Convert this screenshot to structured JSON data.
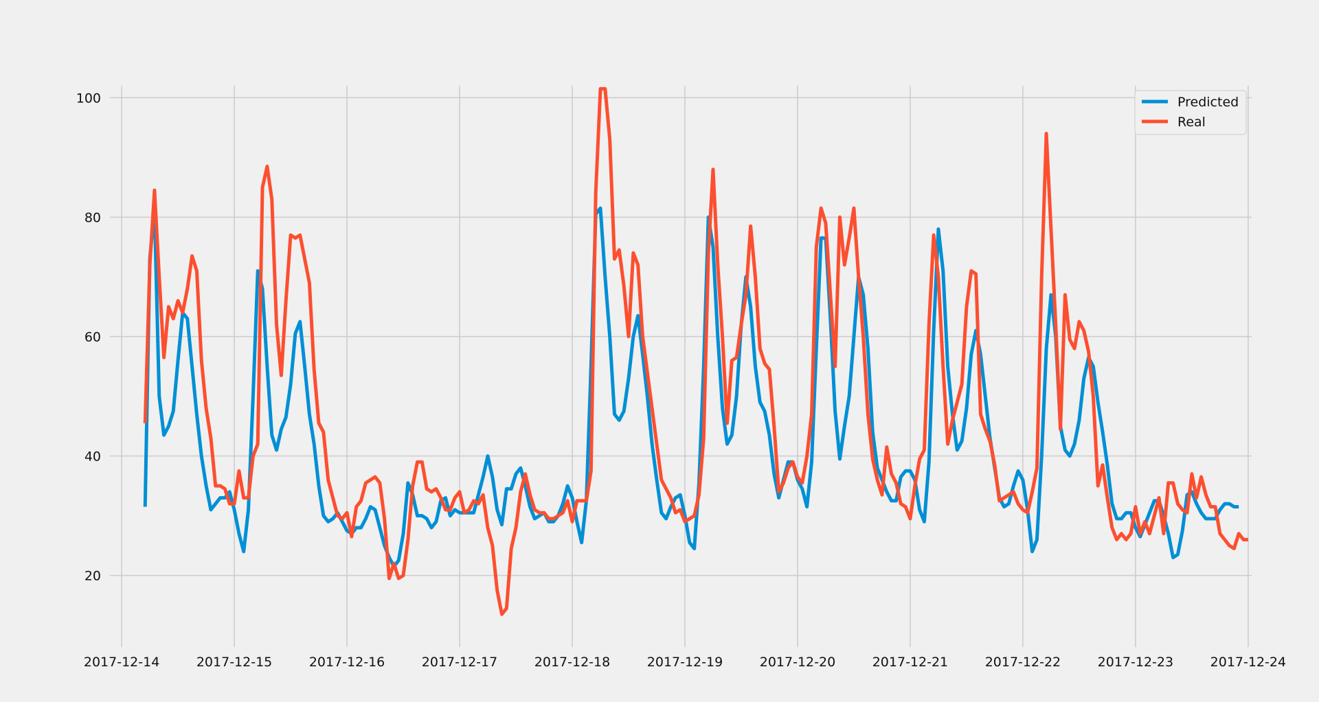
{
  "chart_data": {
    "type": "line",
    "title": "",
    "xlabel": "",
    "ylabel": "",
    "x_start": "2017-12-14 05:00",
    "x_step_hours": 1,
    "xlim": [
      "2017-12-13 21:30",
      "2017-12-24 00:45"
    ],
    "ylim": [
      8,
      102
    ],
    "xticks": [
      "2017-12-14",
      "2017-12-15",
      "2017-12-16",
      "2017-12-17",
      "2017-12-18",
      "2017-12-19",
      "2017-12-20",
      "2017-12-21",
      "2017-12-22",
      "2017-12-23",
      "2017-12-24"
    ],
    "yticks": [
      20,
      40,
      60,
      80,
      100
    ],
    "grid": true,
    "legend": "top-right",
    "series": [
      {
        "name": "Predicted",
        "color": "#008fd5",
        "values": [
          31.5,
          73.0,
          81.5,
          50.0,
          43.5,
          45.0,
          47.5,
          56.0,
          64.0,
          63.0,
          55.0,
          47.0,
          40.0,
          35.0,
          31.0,
          32.0,
          33.0,
          33.0,
          34.0,
          31.0,
          27.0,
          24.0,
          31.0,
          50.0,
          71.0,
          68.0,
          55.0,
          43.5,
          41.0,
          44.5,
          46.5,
          52.0,
          60.5,
          62.5,
          55.0,
          47.0,
          42.0,
          35.0,
          30.0,
          29.0,
          29.5,
          30.5,
          29.0,
          27.5,
          27.0,
          28.0,
          28.0,
          29.5,
          31.5,
          31.0,
          28.0,
          25.0,
          23.0,
          21.5,
          22.5,
          27.0,
          35.5,
          33.5,
          30.0,
          30.0,
          29.5,
          28.0,
          29.0,
          32.5,
          33.0,
          30.0,
          31.0,
          30.5,
          30.5,
          30.5,
          30.5,
          33.5,
          36.5,
          40.0,
          36.5,
          31.0,
          28.5,
          34.5,
          34.5,
          37.0,
          38.0,
          35.0,
          31.5,
          29.5,
          30.0,
          30.5,
          29.0,
          29.0,
          30.0,
          32.0,
          35.0,
          33.0,
          29.0,
          25.5,
          32.5,
          55.0,
          80.5,
          81.5,
          70.0,
          60.0,
          47.0,
          46.0,
          47.5,
          53.0,
          60.0,
          63.5,
          57.0,
          50.0,
          42.0,
          36.0,
          30.5,
          29.5,
          31.5,
          33.0,
          33.5,
          30.0,
          25.5,
          24.5,
          35.5,
          55.0,
          80.0,
          75.0,
          60.0,
          48.0,
          42.0,
          43.5,
          50.0,
          62.0,
          70.0,
          65.0,
          55.0,
          49.0,
          47.5,
          43.5,
          37.0,
          33.0,
          36.0,
          39.0,
          39.0,
          36.0,
          34.5,
          31.5,
          39.0,
          58.0,
          76.5,
          76.5,
          63.0,
          47.5,
          39.5,
          45.0,
          50.0,
          60.0,
          70.0,
          67.0,
          58.0,
          44.0,
          38.0,
          36.0,
          34.0,
          32.5,
          32.5,
          36.5,
          37.5,
          37.5,
          36.0,
          31.0,
          29.0,
          39.0,
          61.0,
          78.0,
          71.0,
          55.0,
          47.0,
          41.0,
          42.5,
          48.0,
          57.0,
          61.0,
          57.0,
          50.0,
          43.0,
          38.0,
          33.0,
          31.5,
          32.0,
          35.0,
          37.5,
          36.0,
          31.0,
          24.0,
          26.0,
          40.0,
          58.0,
          67.0,
          60.0,
          45.0,
          41.0,
          40.0,
          42.0,
          46.0,
          53.0,
          56.5,
          55.0,
          49.0,
          44.0,
          38.5,
          32.0,
          29.5,
          29.5,
          30.5,
          30.5,
          28.0,
          26.5,
          28.5,
          30.5,
          32.5,
          32.5,
          30.0,
          27.0,
          23.0,
          23.5,
          27.5,
          33.5,
          34.0,
          32.0,
          30.5,
          29.5,
          29.5,
          29.5,
          31.0,
          32.0,
          32.0,
          31.5,
          31.5
        ]
      },
      {
        "name": "Real",
        "color": "#fc4f30",
        "values": [
          45.5,
          72.0,
          84.5,
          70.0,
          56.5,
          65.0,
          63.0,
          66.0,
          64.0,
          68.0,
          73.5,
          71.0,
          56.0,
          48.0,
          43.0,
          35.0,
          35.0,
          34.5,
          32.0,
          32.0,
          37.5,
          33.0,
          33.0,
          40.0,
          42.0,
          85.0,
          88.5,
          83.0,
          62.0,
          53.5,
          66.0,
          77.0,
          76.5,
          77.0,
          73.0,
          69.0,
          54.5,
          45.5,
          44.0,
          36.0,
          33.0,
          30.0,
          29.5,
          30.5,
          26.5,
          31.5,
          32.5,
          35.5,
          36.0,
          36.5,
          35.5,
          29.5,
          19.5,
          22.0,
          19.5,
          20.0,
          26.0,
          35.0,
          39.0,
          39.0,
          34.5,
          34.0,
          34.5,
          33.0,
          31.0,
          31.0,
          33.0,
          34.0,
          30.5,
          31.0,
          32.5,
          32.0,
          33.5,
          28.0,
          25.0,
          17.5,
          13.5,
          14.5,
          24.5,
          28.0,
          34.0,
          37.0,
          33.5,
          31.0,
          30.5,
          30.5,
          29.5,
          29.5,
          30.0,
          30.5,
          32.5,
          29.0,
          32.5,
          32.5,
          32.5,
          37.5,
          84.0,
          101.5,
          101.5,
          93.0,
          73.0,
          74.5,
          68.5,
          60.0,
          74.0,
          72.0,
          60.0,
          54.0,
          48.0,
          42.0,
          36.0,
          34.5,
          33.0,
          30.5,
          31.0,
          29.0,
          29.5,
          30.0,
          33.5,
          43.0,
          74.0,
          88.0,
          72.0,
          60.0,
          45.5,
          56.0,
          56.5,
          62.0,
          67.0,
          78.5,
          70.0,
          58.0,
          55.5,
          54.5,
          45.0,
          34.0,
          35.5,
          38.0,
          39.0,
          36.5,
          35.5,
          40.0,
          47.0,
          75.0,
          81.5,
          79.0,
          67.0,
          55.0,
          80.0,
          72.0,
          76.5,
          81.5,
          70.0,
          60.0,
          47.0,
          39.5,
          36.0,
          33.5,
          41.5,
          37.0,
          35.5,
          32.0,
          31.5,
          29.5,
          35.0,
          39.5,
          41.0,
          62.0,
          77.0,
          70.0,
          55.0,
          42.0,
          46.0,
          49.0,
          52.0,
          65.0,
          71.0,
          70.5,
          47.0,
          44.5,
          42.5,
          38.5,
          32.5,
          33.0,
          33.5,
          34.0,
          32.0,
          31.0,
          30.5,
          34.0,
          38.0,
          70.0,
          94.0,
          78.0,
          62.0,
          44.5,
          67.0,
          59.5,
          58.0,
          62.5,
          61.0,
          57.5,
          50.0,
          35.0,
          38.5,
          33.0,
          28.0,
          26.0,
          27.0,
          26.0,
          27.0,
          31.5,
          27.0,
          29.0,
          27.0,
          30.0,
          33.0,
          27.0,
          35.5,
          35.5,
          32.0,
          31.0,
          30.5,
          37.0,
          33.0,
          36.5,
          33.5,
          31.5,
          31.5,
          27.0,
          26.0,
          25.0,
          24.5,
          27.0,
          26.0,
          26.0
        ]
      }
    ]
  }
}
